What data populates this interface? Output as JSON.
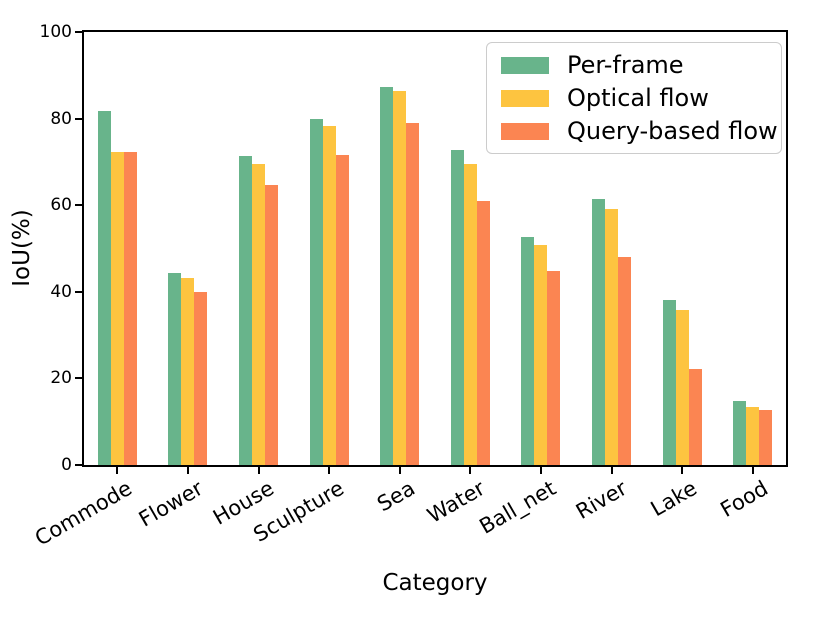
{
  "chart_data": {
    "type": "bar",
    "title": "",
    "xlabel": "Category",
    "ylabel": "IoU(%)",
    "ylim": [
      0,
      100
    ],
    "yticks": [
      0,
      20,
      40,
      60,
      80,
      100
    ],
    "grid": false,
    "legend_position": "upper right",
    "x_tick_rotation": 30,
    "categories": [
      "Commode",
      "Flower",
      "House",
      "Sculpture",
      "Sea",
      "Water",
      "Ball_net",
      "River",
      "Lake",
      "Food"
    ],
    "series": [
      {
        "name": "Per-frame",
        "color": "#68b48b",
        "values": [
          81.8,
          44.4,
          71.4,
          80.0,
          87.4,
          72.7,
          52.6,
          61.5,
          38.2,
          14.7
        ]
      },
      {
        "name": "Optical flow",
        "color": "#fdc440",
        "values": [
          72.4,
          43.2,
          69.5,
          78.4,
          86.3,
          69.4,
          50.8,
          59.1,
          35.7,
          13.4
        ]
      },
      {
        "name": "Query-based flow",
        "color": "#fb8552",
        "values": [
          72.2,
          39.9,
          64.7,
          71.7,
          79.0,
          61.0,
          44.8,
          48.1,
          22.1,
          12.6
        ]
      }
    ],
    "frame_color": "#000000",
    "legend_border_color": "#cccccc"
  }
}
